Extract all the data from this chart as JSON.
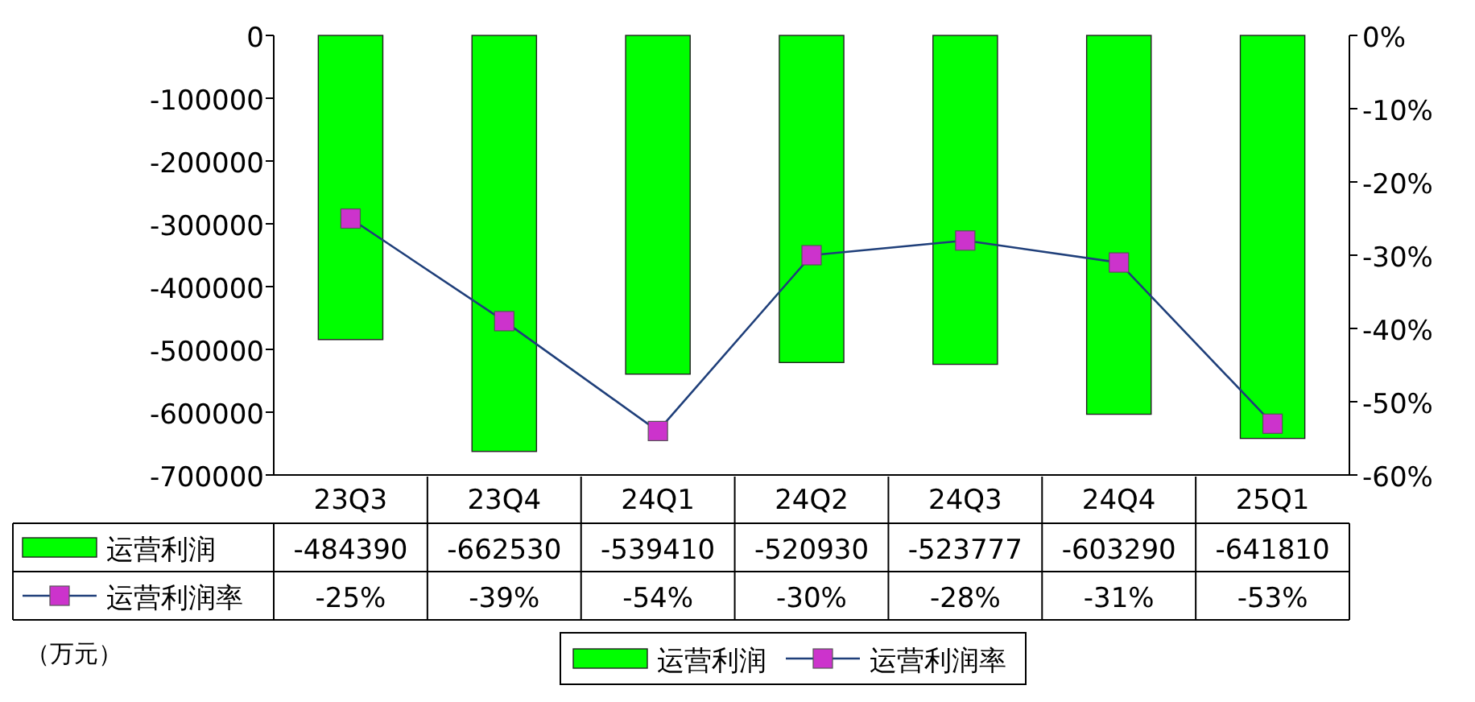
{
  "chart_data": {
    "type": "bar",
    "categories": [
      "23Q3",
      "23Q4",
      "24Q1",
      "24Q2",
      "24Q3",
      "24Q4",
      "25Q1"
    ],
    "series": [
      {
        "name": "运营利润",
        "color": "#00ff00",
        "values": [
          -484390,
          -662530,
          -539410,
          -520930,
          -523777,
          -603290,
          -641810
        ],
        "value_labels": [
          "-484390",
          "-662530",
          "-539410",
          "-520930",
          "-523777",
          "-603290",
          "-641810"
        ]
      },
      {
        "name": "运营利润率",
        "type": "line",
        "axis": "y2",
        "color": "#cc33cc",
        "marker": "square",
        "values": [
          -25,
          -39,
          -54,
          -30,
          -28,
          -31,
          -53
        ],
        "value_labels": [
          "-25%",
          "-39%",
          "-54%",
          "-30%",
          "-28%",
          "-31%",
          "-53%"
        ]
      }
    ],
    "ylim": [
      -700000,
      0
    ],
    "yticks": [
      0,
      -100000,
      -200000,
      -300000,
      -400000,
      -500000,
      -600000,
      -700000
    ],
    "y2lim": [
      -60,
      0
    ],
    "y2ticks": [
      {
        "value": 0,
        "label": "0%"
      },
      {
        "value": -10,
        "label": "-10%"
      },
      {
        "value": -20,
        "label": "-20%"
      },
      {
        "value": -30,
        "label": "-30%"
      },
      {
        "value": -40,
        "label": "-40%"
      },
      {
        "value": -50,
        "label": "-50%"
      },
      {
        "value": -60,
        "label": "-60%"
      }
    ],
    "legend": "bottom",
    "annotations": [
      "（万元）"
    ]
  }
}
